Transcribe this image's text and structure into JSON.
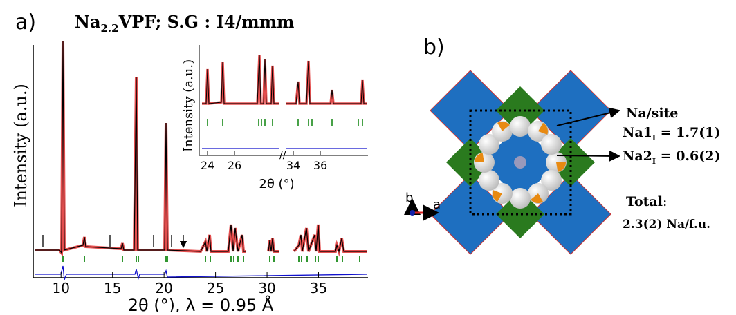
{
  "panel_a": {
    "label": "a)",
    "title": {
      "pre": "Na",
      "sub": "2.2",
      "post": "VPF; S.G : I4/mmm"
    },
    "y_label": "Intensity (a.u.)",
    "x_label": "2θ (°), λ = 0.95 Å",
    "xlim": [
      7.3,
      39.8
    ],
    "x_ticks": [
      10,
      15,
      20,
      25,
      30,
      35
    ],
    "inset": {
      "y_label": "Intensity (a.u.)",
      "x_label": "2θ (°)",
      "x_ticks": [
        24,
        26,
        34,
        36
      ]
    }
  },
  "panel_b": {
    "label": "b)",
    "axis_b": "b",
    "axis_a": "a",
    "site_title": "Na/site",
    "na1": {
      "pre": "Na1",
      "sub": "I",
      "post": " = 1.7(1)"
    },
    "na2": {
      "pre": "Na2",
      "sub": "I",
      "post": " = 0.6(2)"
    },
    "total_label": "Total",
    "total_colon": ":",
    "total_value": "2.3(2) Na/f.u."
  }
}
